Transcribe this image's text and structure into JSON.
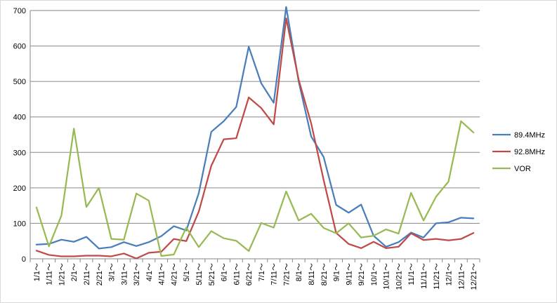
{
  "chart_data": {
    "type": "line",
    "title": "",
    "xlabel": "",
    "ylabel": "",
    "ylim": [
      0,
      700
    ],
    "yticks": [
      0,
      100,
      200,
      300,
      400,
      500,
      600,
      700
    ],
    "grid": "horizontal",
    "legend_position": "right",
    "categories": [
      "1/1～",
      "1/11～",
      "1/21～",
      "2/1～",
      "2/11～",
      "2/21～",
      "3/1～",
      "3/11～",
      "3/21～",
      "4/1～",
      "4/11～",
      "4/21～",
      "5/1～",
      "5/11～",
      "5/21～",
      "6/1～",
      "6/11～",
      "6/21～",
      "7/1～",
      "7/11～",
      "7/21～",
      "8/1～",
      "8/11～",
      "8/21～",
      "9/1～",
      "9/11～",
      "9/21～",
      "10/1～",
      "10/11～",
      "10/21～",
      "11/1～",
      "11/11～",
      "11/21～",
      "12/1～",
      "12/11～",
      "12/21～"
    ],
    "series": [
      {
        "name": "89.4MHz",
        "color": "#4a7ebb",
        "values": [
          40,
          42,
          54,
          48,
          62,
          29,
          33,
          47,
          36,
          47,
          64,
          92,
          80,
          185,
          358,
          388,
          428,
          598,
          495,
          440,
          710,
          500,
          345,
          287,
          152,
          130,
          153,
          65,
          34,
          47,
          74,
          60,
          100,
          103,
          116,
          114
        ]
      },
      {
        "name": "92.8MHz",
        "color": "#be4b48",
        "values": [
          23,
          11,
          7,
          7,
          9,
          9,
          7,
          15,
          1,
          17,
          20,
          56,
          50,
          133,
          262,
          337,
          340,
          455,
          425,
          379,
          678,
          505,
          382,
          222,
          73,
          42,
          30,
          48,
          30,
          34,
          72,
          53,
          56,
          52,
          56,
          73
        ]
      },
      {
        "name": "VOR",
        "color": "#98b954",
        "values": [
          145,
          35,
          122,
          367,
          146,
          200,
          56,
          54,
          184,
          164,
          8,
          12,
          88,
          33,
          78,
          58,
          51,
          22,
          101,
          88,
          190,
          108,
          127,
          87,
          72,
          100,
          60,
          65,
          83,
          71,
          186,
          108,
          175,
          218,
          388,
          356
        ]
      }
    ]
  }
}
